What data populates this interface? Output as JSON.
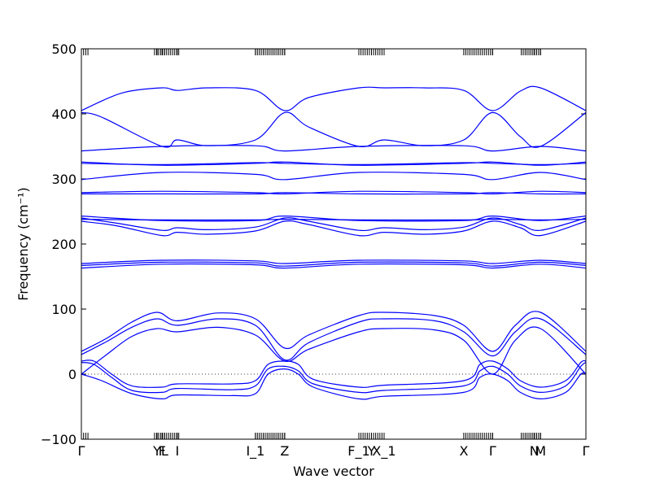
{
  "chart_data": {
    "type": "line",
    "title": "",
    "xlabel": "Wave vector",
    "ylabel": "Frequency (cm⁻¹)",
    "ylim": [
      -100,
      500
    ],
    "yticks": [
      -100,
      0,
      100,
      200,
      300,
      400,
      500
    ],
    "xlim": [
      0,
      1
    ],
    "grid": false,
    "zero_line": true,
    "line_color": "#0000ff",
    "high_symmetry_points": [
      {
        "label": "Γ",
        "x": 0.0
      },
      {
        "label": "Y",
        "x": 0.15
      },
      {
        "label": "F",
        "x": 0.16
      },
      {
        "label": "L",
        "x": 0.165
      },
      {
        "label": "I",
        "x": 0.19
      },
      {
        "label": "I_1",
        "x": 0.345
      },
      {
        "label": "Z",
        "x": 0.403
      },
      {
        "label": "F_1",
        "x": 0.55
      },
      {
        "label": "Y",
        "x": 0.575
      },
      {
        "label": "X_1",
        "x": 0.6
      },
      {
        "label": "X",
        "x": 0.758
      },
      {
        "label": "Γ",
        "x": 0.815
      },
      {
        "label": "N",
        "x": 0.898
      },
      {
        "label": "M",
        "x": 0.91
      },
      {
        "label": "Γ",
        "x": 1.0
      }
    ],
    "tick_clusters": [
      [
        0.0,
        0.013
      ],
      [
        0.145,
        0.193
      ],
      [
        0.345,
        0.403
      ],
      [
        0.55,
        0.6
      ],
      [
        0.758,
        0.815
      ],
      [
        0.872,
        0.91
      ],
      [
        1.0,
        1.0
      ]
    ],
    "series": [
      {
        "values": [
          [
            0,
            405
          ],
          [
            0.08,
            432
          ],
          [
            0.16,
            440
          ],
          [
            0.19,
            436
          ],
          [
            0.25,
            440
          ],
          [
            0.345,
            436
          ],
          [
            0.403,
            405
          ],
          [
            0.45,
            425
          ],
          [
            0.55,
            440
          ],
          [
            0.6,
            440
          ],
          [
            0.68,
            440
          ],
          [
            0.758,
            436
          ],
          [
            0.815,
            405
          ],
          [
            0.87,
            435
          ],
          [
            0.91,
            440
          ],
          [
            1.0,
            405
          ]
        ]
      },
      {
        "values": [
          [
            0,
            402
          ],
          [
            0.04,
            395
          ],
          [
            0.16,
            350
          ],
          [
            0.19,
            360
          ],
          [
            0.25,
            351
          ],
          [
            0.345,
            360
          ],
          [
            0.403,
            402
          ],
          [
            0.45,
            380
          ],
          [
            0.55,
            350
          ],
          [
            0.6,
            360
          ],
          [
            0.68,
            351
          ],
          [
            0.758,
            360
          ],
          [
            0.815,
            402
          ],
          [
            0.87,
            365
          ],
          [
            0.91,
            350
          ],
          [
            1.0,
            402
          ]
        ]
      },
      {
        "values": [
          [
            0,
            343
          ],
          [
            0.16,
            350
          ],
          [
            0.345,
            351
          ],
          [
            0.403,
            343
          ],
          [
            0.55,
            350
          ],
          [
            0.758,
            351
          ],
          [
            0.815,
            343
          ],
          [
            0.91,
            350
          ],
          [
            1.0,
            343
          ]
        ]
      },
      {
        "values": [
          [
            0,
            326
          ],
          [
            0.16,
            321
          ],
          [
            0.345,
            324
          ],
          [
            0.403,
            326
          ],
          [
            0.55,
            321
          ],
          [
            0.758,
            324
          ],
          [
            0.815,
            326
          ],
          [
            0.91,
            321
          ],
          [
            1.0,
            326
          ]
        ]
      },
      {
        "values": [
          [
            0,
            324
          ],
          [
            0.16,
            322
          ],
          [
            0.345,
            325
          ],
          [
            0.403,
            324
          ],
          [
            0.55,
            322
          ],
          [
            0.758,
            325
          ],
          [
            0.815,
            324
          ],
          [
            0.91,
            322
          ],
          [
            1.0,
            324
          ]
        ]
      },
      {
        "values": [
          [
            0,
            299
          ],
          [
            0.16,
            310
          ],
          [
            0.345,
            307
          ],
          [
            0.403,
            299
          ],
          [
            0.55,
            310
          ],
          [
            0.758,
            307
          ],
          [
            0.815,
            299
          ],
          [
            0.91,
            310
          ],
          [
            1.0,
            299
          ]
        ]
      },
      {
        "values": [
          [
            0,
            279
          ],
          [
            0.16,
            281
          ],
          [
            0.345,
            279
          ],
          [
            0.403,
            277
          ],
          [
            0.55,
            281
          ],
          [
            0.758,
            279
          ],
          [
            0.815,
            277
          ],
          [
            0.91,
            281
          ],
          [
            1.0,
            279
          ]
        ]
      },
      {
        "values": [
          [
            0,
            277
          ],
          [
            0.16,
            277
          ],
          [
            0.345,
            277
          ],
          [
            0.403,
            279
          ],
          [
            0.55,
            277
          ],
          [
            0.758,
            277
          ],
          [
            0.815,
            279
          ],
          [
            0.91,
            277
          ],
          [
            1.0,
            277
          ]
        ]
      },
      {
        "values": [
          [
            0,
            243
          ],
          [
            0.16,
            236
          ],
          [
            0.345,
            236
          ],
          [
            0.403,
            243
          ],
          [
            0.55,
            236
          ],
          [
            0.758,
            236
          ],
          [
            0.815,
            243
          ],
          [
            0.91,
            236
          ],
          [
            1.0,
            243
          ]
        ]
      },
      {
        "values": [
          [
            0,
            238
          ],
          [
            0.16,
            237
          ],
          [
            0.345,
            237
          ],
          [
            0.403,
            238
          ],
          [
            0.55,
            237
          ],
          [
            0.758,
            237
          ],
          [
            0.815,
            238
          ],
          [
            0.91,
            237
          ],
          [
            1.0,
            238
          ]
        ]
      },
      {
        "values": [
          [
            0,
            240
          ],
          [
            0.07,
            232
          ],
          [
            0.16,
            221
          ],
          [
            0.19,
            225
          ],
          [
            0.25,
            222
          ],
          [
            0.345,
            226
          ],
          [
            0.403,
            240
          ],
          [
            0.45,
            235
          ],
          [
            0.55,
            221
          ],
          [
            0.6,
            225
          ],
          [
            0.68,
            222
          ],
          [
            0.758,
            226
          ],
          [
            0.815,
            240
          ],
          [
            0.87,
            230
          ],
          [
            0.91,
            221
          ],
          [
            1.0,
            240
          ]
        ]
      },
      {
        "values": [
          [
            0,
            235
          ],
          [
            0.07,
            228
          ],
          [
            0.16,
            213
          ],
          [
            0.19,
            218
          ],
          [
            0.25,
            215
          ],
          [
            0.345,
            220
          ],
          [
            0.403,
            235
          ],
          [
            0.45,
            230
          ],
          [
            0.55,
            213
          ],
          [
            0.6,
            218
          ],
          [
            0.68,
            215
          ],
          [
            0.758,
            220
          ],
          [
            0.815,
            235
          ],
          [
            0.87,
            225
          ],
          [
            0.91,
            213
          ],
          [
            1.0,
            235
          ]
        ]
      },
      {
        "values": [
          [
            0,
            170
          ],
          [
            0.16,
            175
          ],
          [
            0.345,
            174
          ],
          [
            0.403,
            170
          ],
          [
            0.55,
            175
          ],
          [
            0.758,
            174
          ],
          [
            0.815,
            170
          ],
          [
            0.91,
            175
          ],
          [
            1.0,
            170
          ]
        ]
      },
      {
        "values": [
          [
            0,
            167
          ],
          [
            0.16,
            172
          ],
          [
            0.345,
            171
          ],
          [
            0.403,
            166
          ],
          [
            0.55,
            172
          ],
          [
            0.758,
            171
          ],
          [
            0.815,
            166
          ],
          [
            0.91,
            172
          ],
          [
            1.0,
            167
          ]
        ]
      },
      {
        "values": [
          [
            0,
            163
          ],
          [
            0.16,
            169
          ],
          [
            0.345,
            168
          ],
          [
            0.403,
            163
          ],
          [
            0.55,
            169
          ],
          [
            0.758,
            168
          ],
          [
            0.815,
            163
          ],
          [
            0.91,
            169
          ],
          [
            1.0,
            163
          ]
        ]
      },
      {
        "values": [
          [
            0,
            35
          ],
          [
            0.05,
            55
          ],
          [
            0.1,
            80
          ],
          [
            0.15,
            95
          ],
          [
            0.19,
            82
          ],
          [
            0.27,
            94
          ],
          [
            0.345,
            85
          ],
          [
            0.403,
            40
          ],
          [
            0.45,
            60
          ],
          [
            0.55,
            90
          ],
          [
            0.6,
            95
          ],
          [
            0.7,
            90
          ],
          [
            0.758,
            75
          ],
          [
            0.815,
            35
          ],
          [
            0.86,
            75
          ],
          [
            0.91,
            95
          ],
          [
            1.0,
            35
          ]
        ]
      },
      {
        "values": [
          [
            0,
            30
          ],
          [
            0.05,
            50
          ],
          [
            0.1,
            72
          ],
          [
            0.15,
            85
          ],
          [
            0.19,
            75
          ],
          [
            0.27,
            85
          ],
          [
            0.345,
            75
          ],
          [
            0.403,
            22
          ],
          [
            0.45,
            48
          ],
          [
            0.55,
            80
          ],
          [
            0.6,
            85
          ],
          [
            0.7,
            82
          ],
          [
            0.758,
            65
          ],
          [
            0.815,
            28
          ],
          [
            0.86,
            65
          ],
          [
            0.91,
            85
          ],
          [
            1.0,
            30
          ]
        ]
      },
      {
        "values": [
          [
            0,
            0
          ],
          [
            0.05,
            30
          ],
          [
            0.1,
            58
          ],
          [
            0.15,
            70
          ],
          [
            0.19,
            65
          ],
          [
            0.27,
            72
          ],
          [
            0.345,
            60
          ],
          [
            0.403,
            20
          ],
          [
            0.45,
            38
          ],
          [
            0.55,
            65
          ],
          [
            0.6,
            70
          ],
          [
            0.7,
            68
          ],
          [
            0.758,
            52
          ],
          [
            0.815,
            0
          ],
          [
            0.86,
            52
          ],
          [
            0.91,
            70
          ],
          [
            1.0,
            0
          ]
        ]
      },
      {
        "values": [
          [
            0,
            20
          ],
          [
            0.025,
            20
          ],
          [
            0.06,
            0
          ],
          [
            0.1,
            -18
          ],
          [
            0.16,
            -20
          ],
          [
            0.19,
            -15
          ],
          [
            0.3,
            -15
          ],
          [
            0.345,
            -10
          ],
          [
            0.37,
            15
          ],
          [
            0.403,
            20
          ],
          [
            0.43,
            15
          ],
          [
            0.46,
            -8
          ],
          [
            0.55,
            -20
          ],
          [
            0.6,
            -17
          ],
          [
            0.758,
            -10
          ],
          [
            0.79,
            15
          ],
          [
            0.815,
            20
          ],
          [
            0.845,
            8
          ],
          [
            0.87,
            -10
          ],
          [
            0.91,
            -20
          ],
          [
            0.96,
            -10
          ],
          [
            0.99,
            18
          ],
          [
            1.0,
            20
          ]
        ]
      },
      {
        "values": [
          [
            0,
            18
          ],
          [
            0.025,
            15
          ],
          [
            0.06,
            -5
          ],
          [
            0.1,
            -25
          ],
          [
            0.16,
            -28
          ],
          [
            0.19,
            -22
          ],
          [
            0.3,
            -24
          ],
          [
            0.345,
            -18
          ],
          [
            0.37,
            8
          ],
          [
            0.403,
            12
          ],
          [
            0.43,
            5
          ],
          [
            0.46,
            -15
          ],
          [
            0.55,
            -28
          ],
          [
            0.6,
            -25
          ],
          [
            0.758,
            -18
          ],
          [
            0.79,
            5
          ],
          [
            0.815,
            12
          ],
          [
            0.845,
            0
          ],
          [
            0.87,
            -18
          ],
          [
            0.91,
            -28
          ],
          [
            0.96,
            -18
          ],
          [
            0.99,
            12
          ],
          [
            1.0,
            18
          ]
        ]
      },
      {
        "values": [
          [
            0,
            0
          ],
          [
            0.04,
            -10
          ],
          [
            0.1,
            -30
          ],
          [
            0.16,
            -38
          ],
          [
            0.19,
            -32
          ],
          [
            0.3,
            -33
          ],
          [
            0.345,
            -30
          ],
          [
            0.37,
            0
          ],
          [
            0.403,
            8
          ],
          [
            0.43,
            0
          ],
          [
            0.46,
            -20
          ],
          [
            0.55,
            -38
          ],
          [
            0.6,
            -34
          ],
          [
            0.758,
            -28
          ],
          [
            0.79,
            -5
          ],
          [
            0.815,
            0
          ],
          [
            0.845,
            -10
          ],
          [
            0.87,
            -28
          ],
          [
            0.91,
            -38
          ],
          [
            0.96,
            -28
          ],
          [
            0.99,
            0
          ],
          [
            1.0,
            0
          ]
        ]
      }
    ]
  }
}
